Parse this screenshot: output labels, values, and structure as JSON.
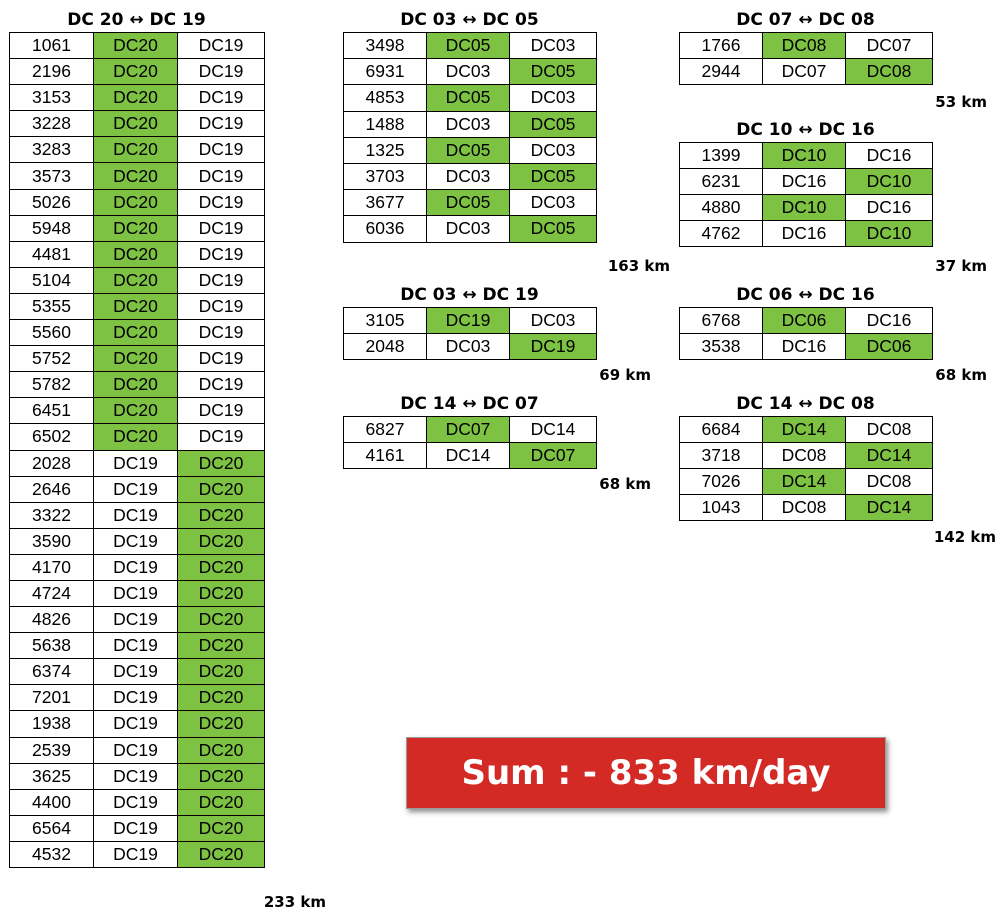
{
  "tables": [
    {
      "title": "DC 20 ↔ DC 19",
      "km": "233 km",
      "rows": [
        [
          "1061",
          "DC20",
          "DC19",
          1
        ],
        [
          "2196",
          "DC20",
          "DC19",
          1
        ],
        [
          "3153",
          "DC20",
          "DC19",
          1
        ],
        [
          "3228",
          "DC20",
          "DC19",
          1
        ],
        [
          "3283",
          "DC20",
          "DC19",
          1
        ],
        [
          "3573",
          "DC20",
          "DC19",
          1
        ],
        [
          "5026",
          "DC20",
          "DC19",
          1
        ],
        [
          "5948",
          "DC20",
          "DC19",
          1
        ],
        [
          "4481",
          "DC20",
          "DC19",
          1
        ],
        [
          "5104",
          "DC20",
          "DC19",
          1
        ],
        [
          "5355",
          "DC20",
          "DC19",
          1
        ],
        [
          "5560",
          "DC20",
          "DC19",
          1
        ],
        [
          "5752",
          "DC20",
          "DC19",
          1
        ],
        [
          "5782",
          "DC20",
          "DC19",
          1
        ],
        [
          "6451",
          "DC20",
          "DC19",
          1
        ],
        [
          "6502",
          "DC20",
          "DC19",
          1
        ],
        [
          "2028",
          "DC19",
          "DC20",
          2
        ],
        [
          "2646",
          "DC19",
          "DC20",
          2
        ],
        [
          "3322",
          "DC19",
          "DC20",
          2
        ],
        [
          "3590",
          "DC19",
          "DC20",
          2
        ],
        [
          "4170",
          "DC19",
          "DC20",
          2
        ],
        [
          "4724",
          "DC19",
          "DC20",
          2
        ],
        [
          "4826",
          "DC19",
          "DC20",
          2
        ],
        [
          "5638",
          "DC19",
          "DC20",
          2
        ],
        [
          "6374",
          "DC19",
          "DC20",
          2
        ],
        [
          "7201",
          "DC19",
          "DC20",
          2
        ],
        [
          "1938",
          "DC19",
          "DC20",
          2
        ],
        [
          "2539",
          "DC19",
          "DC20",
          2
        ],
        [
          "3625",
          "DC19",
          "DC20",
          2
        ],
        [
          "4400",
          "DC19",
          "DC20",
          2
        ],
        [
          "6564",
          "DC19",
          "DC20",
          2
        ],
        [
          "4532",
          "DC19",
          "DC20",
          2
        ]
      ]
    },
    {
      "title": "DC 03 ↔ DC 05",
      "km": "163 km",
      "rows": [
        [
          "3498",
          "DC05",
          "DC03",
          1
        ],
        [
          "6931",
          "DC03",
          "DC05",
          2
        ],
        [
          "4853",
          "DC05",
          "DC03",
          1
        ],
        [
          "1488",
          "DC03",
          "DC05",
          2
        ],
        [
          "1325",
          "DC05",
          "DC03",
          1
        ],
        [
          "3703",
          "DC03",
          "DC05",
          2
        ],
        [
          "3677",
          "DC05",
          "DC03",
          1
        ],
        [
          "6036",
          "DC03",
          "DC05",
          2
        ]
      ]
    },
    {
      "title": "DC 03 ↔ DC 19",
      "km": "69 km",
      "rows": [
        [
          "3105",
          "DC19",
          "DC03",
          1
        ],
        [
          "2048",
          "DC03",
          "DC19",
          2
        ]
      ]
    },
    {
      "title": "DC 14 ↔ DC 07",
      "km": "68 km",
      "rows": [
        [
          "6827",
          "DC07",
          "DC14",
          1
        ],
        [
          "4161",
          "DC14",
          "DC07",
          2
        ]
      ]
    },
    {
      "title": "DC 07 ↔ DC 08",
      "km": "53 km",
      "rows": [
        [
          "1766",
          "DC08",
          "DC07",
          1
        ],
        [
          "2944",
          "DC07",
          "DC08",
          2
        ]
      ]
    },
    {
      "title": "DC 10 ↔ DC 16",
      "km": "37 km",
      "rows": [
        [
          "1399",
          "DC10",
          "DC16",
          1
        ],
        [
          "6231",
          "DC16",
          "DC10",
          2
        ],
        [
          "4880",
          "DC10",
          "DC16",
          1
        ],
        [
          "4762",
          "DC16",
          "DC10",
          2
        ]
      ]
    },
    {
      "title": "DC 06 ↔ DC 16",
      "km": "68 km",
      "rows": [
        [
          "6768",
          "DC06",
          "DC16",
          1
        ],
        [
          "3538",
          "DC16",
          "DC06",
          2
        ]
      ]
    },
    {
      "title": "DC 14 ↔ DC 08",
      "km": "142 km",
      "rows": [
        [
          "6684",
          "DC14",
          "DC08",
          1
        ],
        [
          "3718",
          "DC08",
          "DC14",
          2
        ],
        [
          "7026",
          "DC14",
          "DC08",
          1
        ],
        [
          "1043",
          "DC08",
          "DC14",
          2
        ]
      ]
    }
  ],
  "sum_label": "Sum : - 833 km/day",
  "colors": {
    "highlight": "#7dc242",
    "sum_background": "#d42a25",
    "sum_text": "#ffffff"
  }
}
